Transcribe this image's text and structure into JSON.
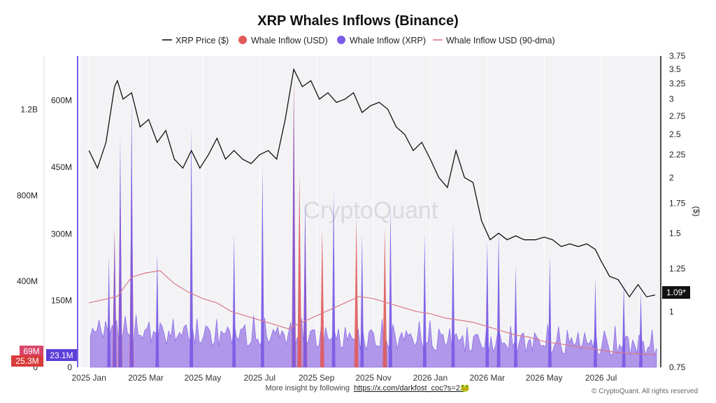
{
  "chart_data": {
    "type": "line",
    "title": "XRP Whales Inflows (Binance)",
    "legend": [
      {
        "name": "XRP Price ($)",
        "color": "#111111",
        "marker": "line"
      },
      {
        "name": "Whale Inflow (USD)",
        "color": "#e05a5a",
        "marker": "dot"
      },
      {
        "name": "Whale Inflow (XRP)",
        "color": "#7b5ce6",
        "marker": "dot"
      },
      {
        "name": "Whale Inflow USD (90-dma)",
        "color": "#d87a86",
        "marker": "line"
      }
    ],
    "legend_position": "top-center",
    "x_ticks": [
      "2025 Jan",
      "2025 Mar",
      "2025 May",
      "2025 Jul",
      "2025 Sep",
      "2025 Nov",
      "2026 Jan",
      "2026 Mar",
      "2026 May",
      "2026 Jul"
    ],
    "left_axis_xrp": {
      "ticks": [
        "0",
        "150M",
        "300M",
        "450M",
        "600M"
      ],
      "range": [
        0,
        700000000
      ],
      "current_badge": "23.1M",
      "badge_color": "#5b3fd9"
    },
    "left_axis_usd": {
      "ticks": [
        "0",
        "400M",
        "800M",
        "1.2B"
      ],
      "range": [
        0,
        1450000000
      ],
      "current_badges": [
        {
          "text": "69M",
          "color": "#d9456a"
        },
        {
          "text": "25.3M",
          "color": "#d93a3a"
        }
      ]
    },
    "right_axis": {
      "label": "($)",
      "ticks": [
        "0.75",
        "1",
        "1.25",
        "1.5",
        "1.75",
        "2",
        "2.25",
        "2.5",
        "2.75",
        "3",
        "3.25",
        "3.5",
        "3.75"
      ],
      "range": [
        0.75,
        3.75
      ],
      "scale": "log",
      "current_badge": "1.09*"
    },
    "series": [
      {
        "name": "XRP Price ($)",
        "axis": "right",
        "x": [
          0,
          0.3,
          0.6,
          0.9,
          1.0,
          1.2,
          1.5,
          1.8,
          2.1,
          2.4,
          2.7,
          3.0,
          3.3,
          3.6,
          3.9,
          4.2,
          4.5,
          4.8,
          5.1,
          5.4,
          5.7,
          6.0,
          6.3,
          6.6,
          6.9,
          7.2,
          7.5,
          7.8,
          8.1,
          8.4,
          8.7,
          9.0,
          9.3,
          9.6,
          9.9,
          10.2,
          10.5,
          10.8,
          11.1,
          11.4,
          11.7,
          12.0,
          12.3,
          12.6,
          12.9,
          13.2,
          13.5,
          13.8,
          14.1,
          14.4,
          14.7,
          15.0,
          15.3,
          15.7,
          16.0,
          16.3,
          16.6,
          16.9,
          17.2,
          17.5,
          17.8,
          18.0,
          18.3,
          18.6,
          19.0,
          19.3,
          19.6,
          19.9
        ],
        "y": [
          2.3,
          2.1,
          2.4,
          3.2,
          3.3,
          3.0,
          3.1,
          2.6,
          2.7,
          2.4,
          2.55,
          2.2,
          2.1,
          2.3,
          2.1,
          2.25,
          2.45,
          2.2,
          2.3,
          2.2,
          2.15,
          2.25,
          2.3,
          2.2,
          2.7,
          3.5,
          3.2,
          3.3,
          3.0,
          3.1,
          2.95,
          3.0,
          3.1,
          2.8,
          2.9,
          2.95,
          2.85,
          2.6,
          2.5,
          2.3,
          2.4,
          2.2,
          2.0,
          1.9,
          2.3,
          2.0,
          1.95,
          1.6,
          1.45,
          1.5,
          1.45,
          1.48,
          1.45,
          1.45,
          1.47,
          1.45,
          1.4,
          1.42,
          1.4,
          1.42,
          1.38,
          1.3,
          1.2,
          1.18,
          1.08,
          1.15,
          1.08,
          1.09
        ]
      },
      {
        "name": "Whale Inflow USD (90-dma)",
        "axis": "left_usd",
        "x": [
          0,
          1,
          1.5,
          2,
          2.5,
          3,
          3.5,
          4,
          4.5,
          5,
          5.5,
          6,
          6.5,
          7,
          7.5,
          8,
          8.5,
          9,
          9.5,
          10,
          10.5,
          11,
          11.5,
          12,
          12.5,
          13,
          13.5,
          14,
          14.5,
          15,
          15.5,
          16,
          16.5,
          17,
          17.5,
          18,
          18.5,
          19,
          19.5,
          19.9
        ],
        "y": [
          300,
          330,
          420,
          440,
          450,
          390,
          350,
          320,
          300,
          260,
          240,
          220,
          200,
          180,
          210,
          240,
          270,
          300,
          330,
          320,
          300,
          280,
          260,
          250,
          230,
          220,
          210,
          190,
          170,
          150,
          140,
          120,
          110,
          100,
          90,
          80,
          70,
          65,
          62,
          60
        ]
      }
    ],
    "inflow_spikes_xrp": {
      "x": [
        0.7,
        0.9,
        1.1,
        1.5,
        2.4,
        3.6,
        5.1,
        6.1,
        7.2,
        7.6,
        8.6,
        9.6,
        10.6,
        11.8,
        12.8,
        14.0,
        14.4,
        15.0,
        16.2,
        17.8,
        18.8,
        19.4
      ],
      "y": [
        250,
        300,
        520,
        600,
        260,
        540,
        300,
        450,
        620,
        380,
        400,
        300,
        360,
        300,
        320,
        290,
        310,
        230,
        250,
        200,
        190,
        170
      ]
    },
    "inflow_spikes_usd": {
      "x": [
        0.9,
        1.1,
        1.5,
        7.2,
        7.4,
        7.6,
        8.2,
        9.4,
        10.4
      ],
      "y": [
        650,
        920,
        1000,
        1350,
        900,
        700,
        650,
        700,
        650
      ]
    },
    "watermark": "CryptoQuant",
    "footer_text": "More insight by following",
    "footer_link": "https://x.com/darkfost_coc?s=21",
    "copyright": "© CryptoQuant. All rights reserved"
  }
}
